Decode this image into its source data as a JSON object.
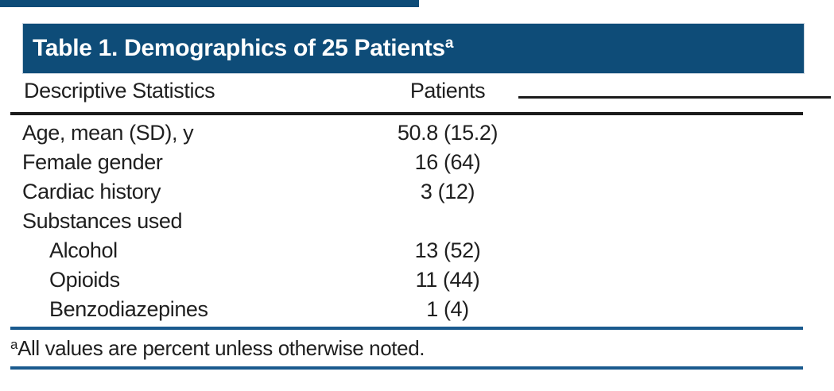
{
  "table": {
    "title": {
      "text": "Table 1. Demographics of 25 Patients",
      "superscript": "a"
    },
    "columns": {
      "label_header": "Descriptive Statistics",
      "value_header": "Patients"
    },
    "rows": [
      {
        "label": "Age, mean (SD), y",
        "value": "50.8 (15.2)",
        "indent": false
      },
      {
        "label": "Female gender",
        "value": "16 (64)",
        "indent": false
      },
      {
        "label": "Cardiac history",
        "value": "3 (12)",
        "indent": false
      },
      {
        "label": "Substances used",
        "value": "",
        "indent": false
      },
      {
        "label": "Alcohol",
        "value": "13 (52)",
        "indent": true
      },
      {
        "label": "Opioids",
        "value": "11 (44)",
        "indent": true
      },
      {
        "label": "Benzodiazepines",
        "value": "1 (4)",
        "indent": true
      }
    ],
    "footnote": {
      "superscript": "a",
      "text": "All values are percent unless otherwise noted."
    }
  },
  "colors": {
    "navy_band": "#0E4C78",
    "rule_blue": "#1A5A8E",
    "rule_black": "#1B1B1B",
    "text": "#1F1F1F",
    "title_text": "#FFFFFF"
  }
}
